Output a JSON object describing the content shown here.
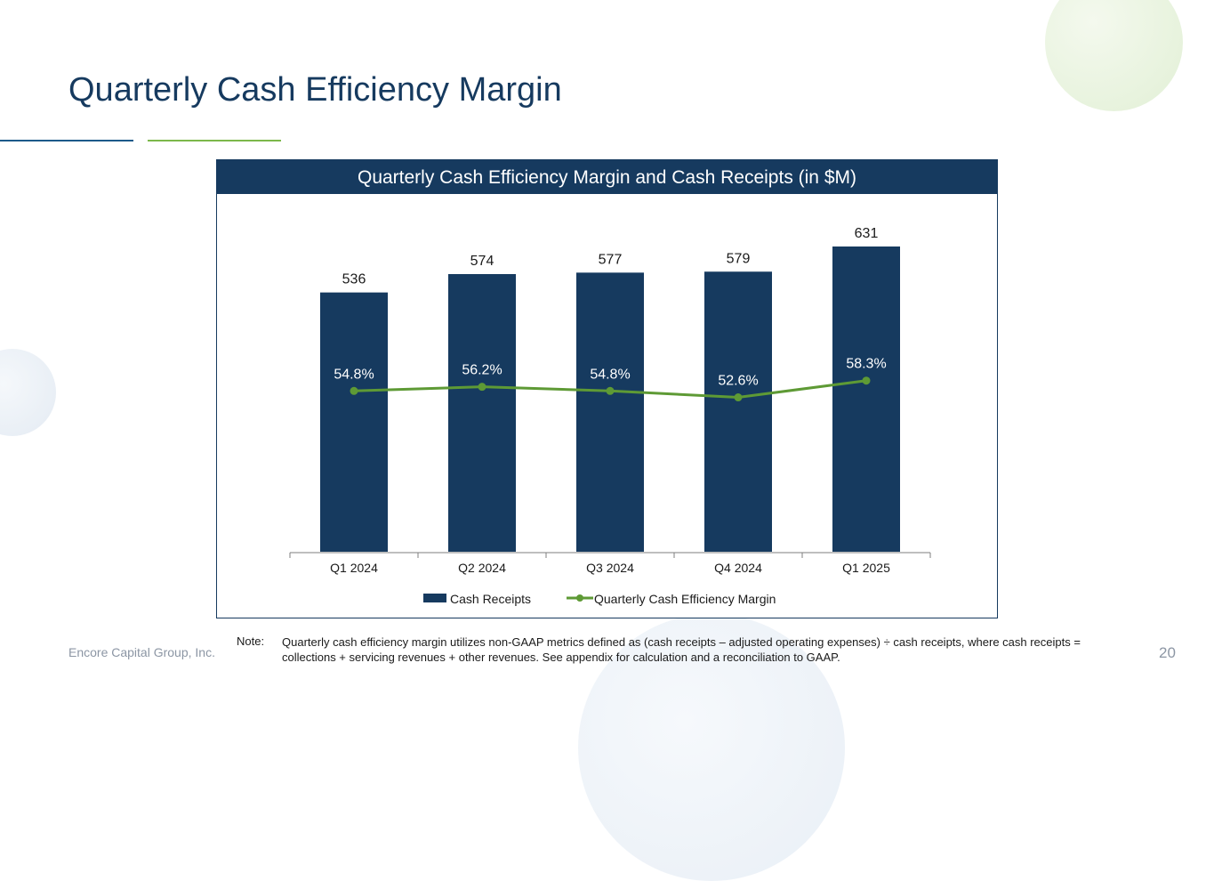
{
  "page": {
    "title": "Quarterly Cash Efficiency Margin",
    "company": "Encore Capital Group, Inc.",
    "page_number": "20",
    "note_label": "Note:",
    "note_text": "Quarterly cash efficiency margin utilizes non-GAAP metrics defined as (cash receipts – adjusted operating expenses) ÷ cash receipts, where cash receipts = collections + servicing revenues + other revenues. See appendix for calculation and a reconciliation to GAAP."
  },
  "colors": {
    "navy": "#163a5f",
    "green": "#5e9a35"
  },
  "chart_data": {
    "type": "bar",
    "title": "Quarterly Cash Efficiency Margin and Cash Receipts (in $M)",
    "categories": [
      "Q1 2024",
      "Q2 2024",
      "Q3 2024",
      "Q4 2024",
      "Q1 2025"
    ],
    "series": [
      {
        "name": "Cash Receipts",
        "type": "bar",
        "values": [
          536,
          574,
          577,
          579,
          631
        ],
        "labels": [
          "536",
          "574",
          "577",
          "579",
          "631"
        ]
      },
      {
        "name": "Quarterly Cash Efficiency Margin",
        "type": "line",
        "values": [
          54.8,
          56.2,
          54.8,
          52.6,
          58.3
        ],
        "labels": [
          "54.8%",
          "56.2%",
          "54.8%",
          "52.6%",
          "58.3%"
        ]
      }
    ],
    "ylim_bars": [
      0,
      631
    ],
    "ylim_line": [
      0,
      104
    ],
    "xlabel": "",
    "ylabel": "",
    "legend": "bottom",
    "grid": false
  }
}
